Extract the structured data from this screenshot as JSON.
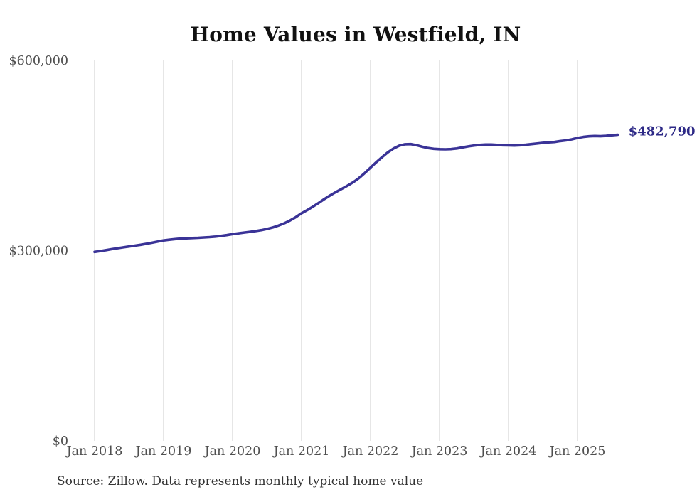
{
  "chart_data": {
    "type": "line",
    "title": "Home Values in Westfield, IN",
    "xlabel": "",
    "ylabel": "",
    "ylim": [
      0,
      600000
    ],
    "grid": "vertical-only",
    "legend": "none",
    "x_ticks": [
      "Jan 2018",
      "Jan 2019",
      "Jan 2020",
      "Jan 2021",
      "Jan 2022",
      "Jan 2023",
      "Jan 2024",
      "Jan 2025"
    ],
    "y_ticks": [
      {
        "value": 600000,
        "label": "$600,000"
      },
      {
        "value": 300000,
        "label": "$300,000"
      },
      {
        "value": 0,
        "label": "$0"
      }
    ],
    "end_label": "$482,790",
    "final_value": 482790,
    "series": [
      {
        "name": "Typical home value",
        "frequency": "monthly",
        "start": "Jan 2018",
        "end": "Aug 2025",
        "values": [
          298000,
          299300,
          300800,
          302300,
          303800,
          305200,
          306500,
          307800,
          309200,
          310800,
          312500,
          314300,
          316000,
          317200,
          318200,
          318900,
          319400,
          319800,
          320200,
          320700,
          321300,
          322100,
          323200,
          324500,
          326000,
          327300,
          328500,
          329600,
          330800,
          332300,
          334200,
          336600,
          339600,
          343200,
          347500,
          352800,
          359000,
          364000,
          369500,
          375500,
          381500,
          387300,
          392500,
          397500,
          402500,
          408000,
          414500,
          422500,
          431000,
          439500,
          447500,
          455000,
          461000,
          465500,
          467800,
          468000,
          466200,
          463800,
          461800,
          460600,
          460000,
          459800,
          460200,
          461200,
          462800,
          464400,
          465800,
          466800,
          467300,
          467300,
          466800,
          466200,
          466000,
          465800,
          466200,
          467000,
          468000,
          469000,
          470000,
          470800,
          471400,
          472800,
          473800,
          475500,
          477800,
          479300,
          480300,
          480800,
          480500,
          481000,
          482000,
          482790
        ]
      }
    ],
    "colors": {
      "line": "#3a3397",
      "end_label": "#2e2a87",
      "axis_text": "#4f4f4f",
      "gridline": "#cccccc",
      "title": "#111111"
    }
  },
  "source_note": "Source: Zillow. Data represents monthly typical home value"
}
